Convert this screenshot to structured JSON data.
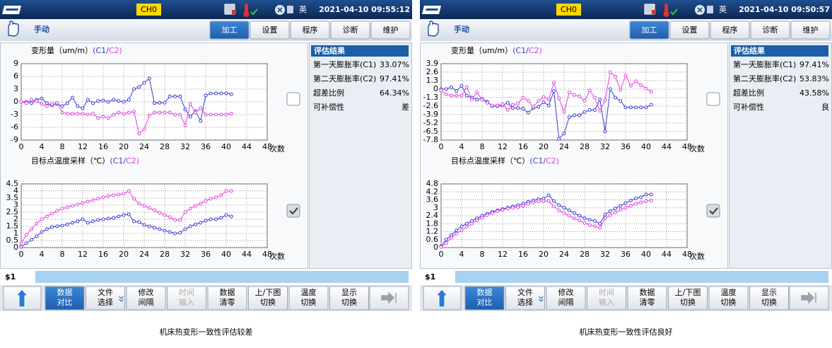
{
  "panels": [
    {
      "status": {
        "channel": "CH0",
        "lang": "英",
        "datetime": "2021-04-10 09:55:12"
      },
      "mode": "手动",
      "tabs": [
        {
          "label": "加工",
          "selected": true
        },
        {
          "label": "设置",
          "selected": false
        },
        {
          "label": "程序",
          "selected": false
        },
        {
          "label": "诊断",
          "selected": false
        },
        {
          "label": "维护",
          "selected": false
        }
      ],
      "charts": [
        {
          "type": "line",
          "title": "变形量（um/m）",
          "legend_marks": [
            "(",
            "/",
            ")"
          ],
          "xlabel": "次数",
          "xlim": [
            0,
            48
          ],
          "xticks": [
            0,
            4,
            8,
            12,
            16,
            20,
            24,
            28,
            32,
            36,
            40,
            44,
            48
          ],
          "ylim": [
            -9,
            9
          ],
          "yticks": [
            -9,
            -6,
            -3,
            0,
            3,
            6,
            9
          ],
          "grid": true,
          "x": [
            0,
            1,
            2,
            3,
            4,
            5,
            6,
            7,
            8,
            9,
            10,
            11,
            12,
            13,
            14,
            15,
            16,
            17,
            18,
            19,
            20,
            21,
            22,
            23,
            24,
            25,
            26,
            27,
            28,
            29,
            30,
            31,
            32,
            33,
            34,
            35,
            36,
            37,
            38,
            39,
            40,
            41
          ],
          "series": [
            {
              "name": "C1",
              "color": "#3a3ad8",
              "values": [
                0,
                0,
                -0.3,
                0.5,
                0.8,
                -0.3,
                -0.8,
                -0.5,
                -1,
                -0.3,
                1,
                -1,
                -1.5,
                0.5,
                -0.3,
                0.2,
                0.3,
                0,
                0.5,
                0.2,
                0,
                0.5,
                3,
                3.5,
                4.5,
                5.5,
                -0.3,
                -0.2,
                -0.2,
                1.3,
                1.3,
                1.3,
                -1.8,
                -3.5,
                -2.2,
                -4.5,
                1.5,
                2,
                2,
                2,
                2,
                1.8
              ]
            },
            {
              "name": "C2",
              "color": "#e040e0",
              "values": [
                0,
                -0.3,
                0.5,
                0.2,
                -0.5,
                -1,
                -0.5,
                -0.2,
                -2.5,
                -2.8,
                -2.8,
                -2.8,
                -2.8,
                -3,
                -2.8,
                -3.8,
                -3.5,
                -3.8,
                -3,
                -2.5,
                -2.8,
                -2.5,
                -2.3,
                -7.5,
                -6.5,
                -3.2,
                -2.5,
                -2.5,
                -2.5,
                -2.5,
                -3,
                -3,
                -5.5,
                -0.5,
                -2.5,
                -1.5,
                -3,
                -3,
                -3,
                -3,
                -3,
                -2.8
              ]
            }
          ]
        },
        {
          "type": "line",
          "title": "目标点温度采样（℃）",
          "legend_marks": [
            "(",
            "/",
            ")"
          ],
          "xlabel": "次数",
          "xlim": [
            0,
            48
          ],
          "xticks": [
            0,
            4,
            8,
            12,
            16,
            20,
            24,
            28,
            32,
            36,
            40,
            44,
            48
          ],
          "ylim": [
            0,
            4.5
          ],
          "yticks": [
            0,
            0.5,
            1,
            1.5,
            2,
            2.5,
            3,
            3.5,
            4,
            4.5
          ],
          "grid": true,
          "x": [
            0,
            1,
            2,
            3,
            4,
            5,
            6,
            7,
            8,
            9,
            10,
            11,
            12,
            13,
            14,
            15,
            16,
            17,
            18,
            19,
            20,
            21,
            22,
            23,
            24,
            25,
            26,
            27,
            28,
            29,
            30,
            31,
            32,
            33,
            34,
            35,
            36,
            37,
            38,
            39,
            40,
            41
          ],
          "series": [
            {
              "name": "C1",
              "color": "#3a3ad8",
              "values": [
                0.05,
                0.3,
                0.55,
                0.8,
                1.1,
                1.3,
                1.45,
                1.5,
                1.55,
                1.65,
                1.75,
                1.85,
                2,
                1.75,
                1.85,
                1.95,
                2,
                2.05,
                2.1,
                2.2,
                2.3,
                2.35,
                1.85,
                1.8,
                1.6,
                1.5,
                1.4,
                1.3,
                1.2,
                1.1,
                1,
                1.05,
                1.3,
                1.5,
                1.65,
                1.75,
                1.9,
                2,
                2,
                2.1,
                2.3,
                2.2
              ]
            },
            {
              "name": "C2",
              "color": "#e040e0",
              "values": [
                0.3,
                0.9,
                1.3,
                1.7,
                2,
                2.2,
                2.4,
                2.6,
                2.75,
                2.85,
                2.95,
                3.05,
                3.15,
                3.25,
                3.35,
                3.45,
                3.55,
                3.65,
                3.7,
                3.75,
                3.8,
                4,
                3.45,
                3.1,
                2.95,
                2.8,
                2.65,
                2.45,
                2.3,
                2.15,
                1.95,
                1.95,
                2.5,
                2.75,
                2.95,
                3.1,
                3.3,
                3.45,
                3.55,
                3.7,
                4,
                4
              ]
            }
          ]
        }
      ],
      "results": {
        "title": "评估结果",
        "rows": [
          [
            "第一天膨胀率(C1)",
            "33.07%"
          ],
          [
            "第二天膨胀率(C2)",
            "97.41%"
          ],
          [
            "超差比例",
            "64.34%"
          ],
          [
            "可补偿性",
            "差"
          ]
        ]
      },
      "checks": [
        false,
        true
      ],
      "program": "$1",
      "buttons": [
        {
          "lines": [
            "数据",
            "对比"
          ],
          "active": true,
          "enabled": true
        },
        {
          "lines": [
            "文件",
            "选择"
          ],
          "active": false,
          "enabled": true
        },
        {
          "lines": [
            "修改",
            "间隔"
          ],
          "active": false,
          "enabled": true
        },
        {
          "lines": [
            "时间",
            "输入"
          ],
          "active": false,
          "enabled": false
        },
        {
          "lines": [
            "数据",
            "清零"
          ],
          "active": false,
          "enabled": true
        },
        {
          "lines": [
            "上/下图",
            "切换"
          ],
          "active": false,
          "enabled": true
        },
        {
          "lines": [
            "温度",
            "切换"
          ],
          "active": false,
          "enabled": true
        },
        {
          "lines": [
            "显示",
            "切换"
          ],
          "active": false,
          "enabled": true
        }
      ],
      "caption": "机床热变形一致性评估较差"
    },
    {
      "status": {
        "channel": "CH0",
        "lang": "英",
        "datetime": "2021-04-10 09:50:57"
      },
      "mode": "手动",
      "tabs": [
        {
          "label": "加工",
          "selected": true
        },
        {
          "label": "设置",
          "selected": false
        },
        {
          "label": "程序",
          "selected": false
        },
        {
          "label": "诊断",
          "selected": false
        },
        {
          "label": "维护",
          "selected": false
        }
      ],
      "charts": [
        {
          "type": "line",
          "title": "变形量（um/m）",
          "legend_marks": [
            "(",
            "/",
            ")"
          ],
          "xlabel": "次数",
          "xlim": [
            0,
            48
          ],
          "xticks": [
            0,
            4,
            8,
            12,
            16,
            20,
            24,
            28,
            32,
            36,
            40,
            44,
            48
          ],
          "ylim": [
            -7.8,
            3.9
          ],
          "yticks": [
            -7.8,
            -6.5,
            -5.2,
            -3.9,
            -2.6,
            -1.3,
            0,
            1.3,
            2.6,
            3.9
          ],
          "grid": true,
          "x": [
            0,
            1,
            2,
            3,
            4,
            5,
            6,
            7,
            8,
            9,
            10,
            11,
            12,
            13,
            14,
            15,
            16,
            17,
            18,
            19,
            20,
            21,
            22,
            23,
            24,
            25,
            26,
            27,
            28,
            29,
            30,
            31,
            32,
            33,
            34,
            35,
            36,
            37,
            38,
            39,
            40,
            41
          ],
          "series": [
            {
              "name": "C1",
              "color": "#3a3ad8",
              "values": [
                0,
                0,
                0.3,
                -0.3,
                0.5,
                -1,
                -1.3,
                -1.6,
                -1.5,
                -1.9,
                -2.6,
                -2.6,
                -2.5,
                -2.1,
                -2.9,
                -2.9,
                -3,
                -3.6,
                -2.9,
                -2.7,
                -2,
                -2.5,
                -0.3,
                -7.6,
                -6.8,
                -4.3,
                -4,
                -4,
                -3.5,
                -3.2,
                -3.2,
                -1.6,
                -6.5,
                0,
                -1.3,
                -1.8,
                -2.8,
                -2.8,
                -2.8,
                -2.8,
                -2.8,
                -2.4
              ]
            },
            {
              "name": "C2",
              "color": "#e040e0",
              "values": [
                -0.2,
                -0.8,
                -1,
                -1,
                -1,
                0.3,
                -1.6,
                -0.5,
                -1.6,
                -2.1,
                -2.5,
                -2.5,
                -2.3,
                -3.2,
                -2.4,
                -2.2,
                -1.3,
                -1.8,
                -2.7,
                -1.8,
                -1.2,
                -1.6,
                1,
                -1.4,
                -3.5,
                -0.5,
                -0.9,
                -1.1,
                -1.8,
                -0.2,
                -1.3,
                -3.3,
                -1.7,
                2.6,
                1.9,
                -0.1,
                2.1,
                0.5,
                1.2,
                0.6,
                0.1,
                -0.4
              ]
            }
          ]
        },
        {
          "type": "line",
          "title": "目标点温度采样（℃）",
          "legend_marks": [
            "(",
            "/",
            ")"
          ],
          "xlabel": "次数",
          "xlim": [
            0,
            48
          ],
          "xticks": [
            0,
            4,
            8,
            12,
            16,
            20,
            24,
            28,
            32,
            36,
            40,
            44,
            48
          ],
          "ylim": [
            0,
            4.8
          ],
          "yticks": [
            0,
            0.6,
            1.2,
            1.8,
            2.4,
            3,
            3.6,
            4.2,
            4.8
          ],
          "grid": true,
          "x": [
            0,
            1,
            2,
            3,
            4,
            5,
            6,
            7,
            8,
            9,
            10,
            11,
            12,
            13,
            14,
            15,
            16,
            17,
            18,
            19,
            20,
            21,
            22,
            23,
            24,
            25,
            26,
            27,
            28,
            29,
            30,
            31,
            32,
            33,
            34,
            35,
            36,
            37,
            38,
            39,
            40,
            41
          ],
          "series": [
            {
              "name": "C1",
              "color": "#3a3ad8",
              "values": [
                0.1,
                0.6,
                0.95,
                1.3,
                1.6,
                1.8,
                2,
                2.2,
                2.4,
                2.55,
                2.7,
                2.8,
                2.9,
                3,
                3.1,
                3.2,
                3.3,
                3.45,
                3.55,
                3.65,
                3.7,
                3.95,
                3.5,
                3.2,
                3,
                2.8,
                2.6,
                2.4,
                2.2,
                2.1,
                2,
                1.8,
                2.5,
                2.75,
                2.95,
                3.15,
                3.35,
                3.55,
                3.7,
                3.8,
                4,
                4
              ]
            },
            {
              "name": "C2",
              "color": "#e040e0",
              "values": [
                0.05,
                0.35,
                0.75,
                1.05,
                1.3,
                1.55,
                1.8,
                2.05,
                2.25,
                2.45,
                2.6,
                2.75,
                2.85,
                2.95,
                3,
                3.05,
                3.15,
                3.3,
                3.4,
                3.5,
                3.5,
                3.5,
                3.1,
                2.8,
                2.6,
                2.4,
                2.2,
                2.05,
                1.85,
                1.7,
                1.6,
                1.5,
                2.2,
                2.45,
                2.65,
                2.85,
                3,
                3.15,
                3.3,
                3.4,
                3.5,
                3.55
              ]
            }
          ]
        }
      ],
      "results": {
        "title": "评估结果",
        "rows": [
          [
            "第一天膨胀率(C1)",
            "97.41%"
          ],
          [
            "第二天膨胀率(C2)",
            "53.83%"
          ],
          [
            "超差比例",
            "43.58%"
          ],
          [
            "可补偿性",
            "良"
          ]
        ]
      },
      "checks": [
        false,
        true
      ],
      "program": "$1",
      "buttons": [
        {
          "lines": [
            "数据",
            "对比"
          ],
          "active": true,
          "enabled": true
        },
        {
          "lines": [
            "文件",
            "选择"
          ],
          "active": false,
          "enabled": true
        },
        {
          "lines": [
            "修改",
            "间隔"
          ],
          "active": false,
          "enabled": true
        },
        {
          "lines": [
            "时间",
            "输入"
          ],
          "active": false,
          "enabled": false
        },
        {
          "lines": [
            "数据",
            "清零"
          ],
          "active": false,
          "enabled": true
        },
        {
          "lines": [
            "上/下图",
            "切换"
          ],
          "active": false,
          "enabled": true
        },
        {
          "lines": [
            "温度",
            "切换"
          ],
          "active": false,
          "enabled": true
        },
        {
          "lines": [
            "显示",
            "切换"
          ],
          "active": false,
          "enabled": true
        }
      ],
      "caption": "机床热变形一致性评估良好"
    }
  ]
}
